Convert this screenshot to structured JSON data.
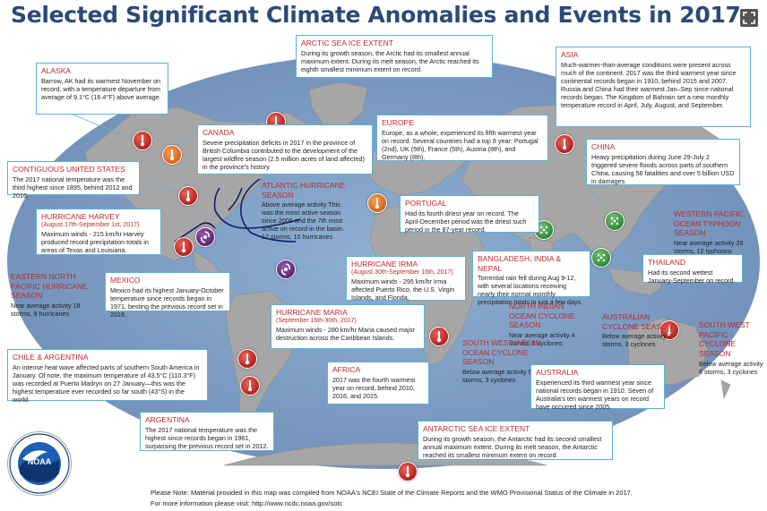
{
  "title": "Selected Significant Climate Anomalies and Events in 2017",
  "colors": {
    "ocean": "#7a9abf",
    "land": "#a5a5a5",
    "box_border": "#5db0d8",
    "heading": "#c0292c",
    "title": "#2b4a76"
  },
  "icons": {
    "expand": "expand-icon",
    "warm": "thermometer-warm-icon",
    "cold": "thermometer-cold-icon",
    "wet": "rain-icon",
    "storm": "hurricane-icon"
  },
  "events": {
    "alaska": {
      "heading": "ALASKA",
      "text": "Barrow, AK had its warmest November on record, with a temperature departure from average of 9.1°C (16.4°F) above average."
    },
    "arctic": {
      "heading": "ARCTIC SEA ICE EXTENT",
      "text": "During its growth season, the Arctic had its smallest annual maximum extent. During its melt season, the Arctic reached its eighth smallest minimum extent on record."
    },
    "asia": {
      "heading": "ASIA",
      "text": "Much-warmer-than-average conditions were present across much of the continent. 2017 was the third warmest year since continental records began in 1910, behind 2015 and 2007. Russia and China had their warmest Jan–Sep since national records began. The Kingdom of Bahrain set a new monthly temperature record in April, July, August, and September."
    },
    "canada": {
      "heading": "CANADA",
      "text": "Severe precipitation deficits in 2017 in the province of British Columbia contributed to the development of the largest wildfire season (2.5 million acres of land affected) in the province's history"
    },
    "europe": {
      "heading": "EUROPE",
      "text": "Europe, as a whole, experienced its fifth warmest year on record. Several countries had a top 8 year: Portugal (2nd), UK (5th), France (5th), Austria (8th), and Germany (8th)."
    },
    "china": {
      "heading": "CHINA",
      "text": "Heavy precipitation during June 29-July 2 triggered severe floods across parts of southern China, causing 56 fatalities and over 5 billion USD in damages."
    },
    "contiguous_us": {
      "heading": "CONTIGUOUS UNITED STATES",
      "text": "The 2017 national temperature was the third highest since 1895, behind 2012 and 2016."
    },
    "atlantic": {
      "heading": "ATLANTIC HURRICANE SEASON",
      "text": "Above average activity This was the most active season since 2005 and the 7th most active on record in the basin. 17 storms, 10 hurricanes"
    },
    "portugal": {
      "heading": "PORTUGAL",
      "text": "Had its fourth driest year on record. The April-December period was the driest such period in the 87-year record."
    },
    "wpac": {
      "heading": "WESTERN PACIFIC OCEAN TYPHOON SEASON",
      "text": "Near average activity 26 storms, 12 typhoons"
    },
    "harvey": {
      "heading": "HURRICANE HARVEY",
      "dates": "(August 17th-September 1st, 2017)",
      "text": "Maximum winds - 215 km/hr Harvey produced record precipitation totals in areas of Texas and Louisiana."
    },
    "irma": {
      "heading": "HURRICANE IRMA",
      "dates": "(August 30th-September 16th, 2017)",
      "text": "Maximum winds - 295 km/hr Irma affected Puerto Rico, the U.S. Virgin Islands, and Florida."
    },
    "bangladesh": {
      "heading": "BANGLADESH, INDIA & NEPAL",
      "text": "Torrential rain fell during Aug 9-12, with several locations receiving nearly their normal monthly precipitation totals in just a few days."
    },
    "thailand": {
      "heading": "THAILAND",
      "text": "Had its second wettest January-September on record."
    },
    "enp": {
      "heading": "EASTERN NORTH PACIFIC HURRICANE SEASON",
      "text": "Near average activity 18 storms, 9 hurricanes"
    },
    "mexico": {
      "heading": "MEXICO",
      "text": "Mexico had its highest January-October temperature since records began in 1971, besting the previous record set in 2016."
    },
    "maria": {
      "heading": "HURRICANE MARIA",
      "dates": "(September 16th-30th, 2017)",
      "text": "Maximum winds - 280 km/hr Maria caused major destruction across the Caribbean Islands."
    },
    "nio": {
      "heading": "NORTH INDIAN OCEAN CYCLONE SEASON",
      "text": "Near average activity 4 storms, 2 cyclones"
    },
    "aus_cyclone": {
      "heading": "AUSTRALIAN CYCLONE SEASON",
      "text": "Below average activity 7 storms, 3 cyclones"
    },
    "swp": {
      "heading": "SOUTH WEST PACIFIC CYCLONE SEASON",
      "text": "Below average activity 6 storms, 3 cyclones"
    },
    "chile": {
      "heading": "CHILE & ARGENTINA",
      "text": "An intense heat wave affected parts of southern South America in January. Of note, the maximum temperature of 43.5°C (110.3°F) was recorded at Puerto Madryn on 27 January—this was the highest temperature ever recorded so far south (43°S) in the world."
    },
    "swio": {
      "heading": "SOUTH WEST INDIAN OCEAN CYCLONE SEASON",
      "text": "Below average activity 5 storms, 3 cyclones"
    },
    "africa": {
      "heading": "AFRICA",
      "text": "2017 was the fourth warmest year on record, behind 2010, 2016, and 2015."
    },
    "australia": {
      "heading": "AUSTRALIA",
      "text": "Experienced its third warmest year since national records began in 1910. Seven of Australia's ten warmest years on record have occurred since 2005."
    },
    "argentina": {
      "heading": "ARGENTINA",
      "text": "The 2017 national temperature was the highest since records began in 1961, surpassing the previous record set in 2012."
    },
    "antarctic": {
      "heading": "ANTARCTIC SEA ICE EXTENT",
      "text": "During its growth season, the Antarctic had its second smallest annual maximum extent. During its melt season, the Antarctic reached its smallest minimum extent on record."
    }
  },
  "logo": {
    "text": "NOAA",
    "ring_text": "NATIONAL OCEANIC AND ATMOSPHERIC ADMINISTRATION · U.S. DEPARTMENT OF COMMERCE"
  },
  "footer": {
    "line1": "Please Note: Material provided in this map was compiled from NOAA's NCEI State of the Climate Reports and the WMO Provisional Status of the Climate in 2017.",
    "line2": "For more information please visit: http://www.ncdc.noaa.gov/sotc"
  }
}
